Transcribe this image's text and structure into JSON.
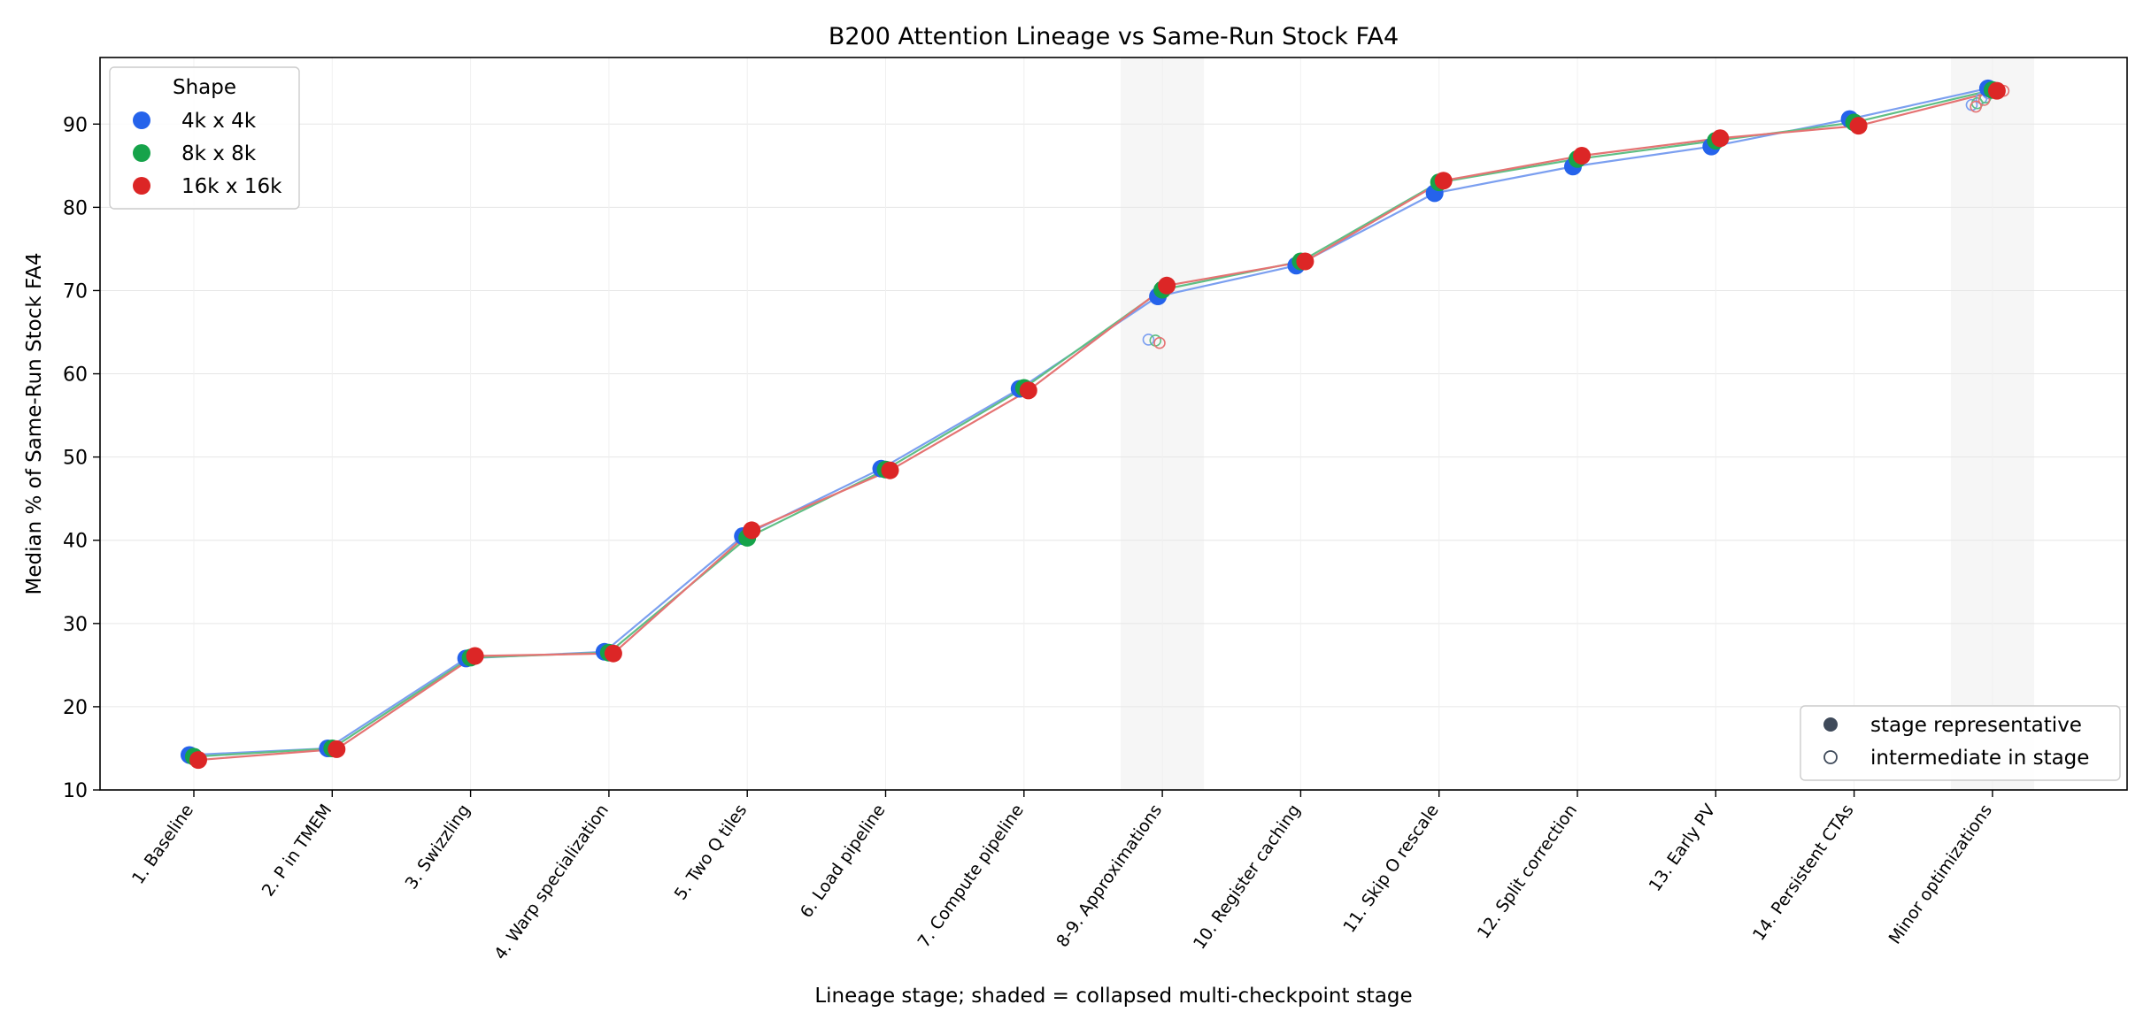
{
  "chart_data": {
    "type": "line",
    "title": "B200 Attention Lineage vs Same-Run Stock FA4",
    "xlabel": "Lineage stage; shaded = collapsed multi-checkpoint stage",
    "ylabel": "Median % of Same-Run Stock FA4",
    "ylim": [
      10,
      98
    ],
    "yticks": [
      10,
      20,
      30,
      40,
      50,
      60,
      70,
      80,
      90
    ],
    "grid": true,
    "categories": [
      "1. Baseline",
      "2. P in TMEM",
      "3. Swizzling",
      "4. Warp specialization",
      "5. Two Q tiles",
      "6. Load pipeline",
      "7. Compute pipeline",
      "8-9. Approximations",
      "10. Register caching",
      "11. Skip O rescale",
      "12. Split correction",
      "13. Early PV",
      "14. Persistent CTAs",
      "Minor optimizations"
    ],
    "shaded_categories": [
      "8-9. Approximations",
      "Minor optimizations"
    ],
    "series": [
      {
        "name": "4k x 4k",
        "color": "#2563eb",
        "line_color": "#7b9ff0",
        "values": [
          14.2,
          15.0,
          25.8,
          26.6,
          40.5,
          48.6,
          58.2,
          69.3,
          73.0,
          81.7,
          84.9,
          87.3,
          90.6,
          94.3
        ]
      },
      {
        "name": "8k x 8k",
        "color": "#16a34a",
        "line_color": "#5fbf85",
        "values": [
          14.0,
          15.0,
          25.9,
          26.5,
          40.3,
          48.5,
          58.3,
          70.1,
          73.5,
          83.0,
          85.8,
          88.0,
          90.2,
          94.1
        ]
      },
      {
        "name": "16k x 16k",
        "color": "#dc2626",
        "line_color": "#e57373",
        "values": [
          13.6,
          14.9,
          26.1,
          26.4,
          41.2,
          48.4,
          58.0,
          70.6,
          73.5,
          83.2,
          86.2,
          88.3,
          89.8,
          94.0
        ]
      }
    ],
    "intermediates": [
      {
        "category": "8-9. Approximations",
        "points": [
          {
            "series": "4k x 4k",
            "offsets": [
              -0.1
            ],
            "values": [
              64.1
            ]
          },
          {
            "series": "8k x 8k",
            "offsets": [
              -0.05
            ],
            "values": [
              64.0
            ]
          },
          {
            "series": "16k x 16k",
            "offsets": [
              -0.02
            ],
            "values": [
              63.7
            ]
          }
        ]
      },
      {
        "category": "Minor optimizations",
        "points": [
          {
            "series": "4k x 4k",
            "offsets": [
              -0.15,
              -0.08,
              -0.03
            ],
            "values": [
              92.3,
              93.1,
              93.7
            ]
          },
          {
            "series": "8k x 8k",
            "offsets": [
              -0.11,
              -0.05
            ],
            "values": [
              92.5,
              93.2
            ]
          },
          {
            "series": "16k x 16k",
            "offsets": [
              -0.12,
              -0.06,
              0.03,
              0.08
            ],
            "values": [
              92.1,
              92.9,
              94.2,
              94.0
            ]
          }
        ]
      }
    ],
    "legend": {
      "title": "Shape",
      "placement": "upper-left",
      "entries": [
        "4k x 4k",
        "8k x 8k",
        "16k x 16k"
      ]
    },
    "marker_legend": {
      "placement": "lower-right",
      "entries": [
        {
          "label": "stage representative",
          "style": "filled",
          "color": "#3f4a5a"
        },
        {
          "label": "intermediate in stage",
          "style": "hollow",
          "color": "#3f4a5a"
        }
      ]
    }
  }
}
